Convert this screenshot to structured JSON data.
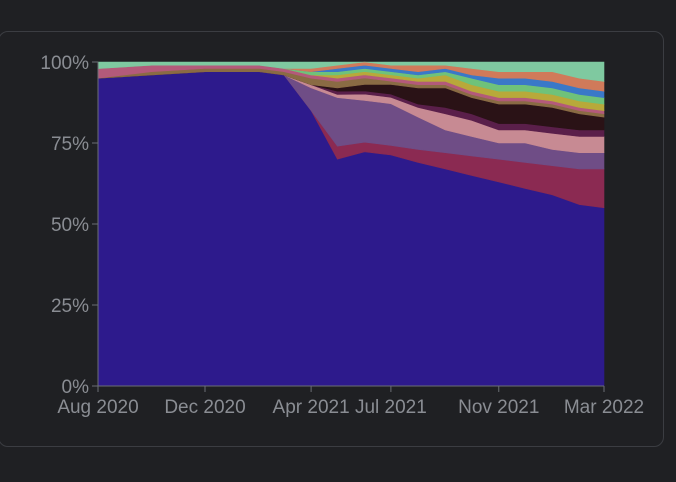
{
  "chart_data": {
    "type": "area",
    "stacked": true,
    "normalized": true,
    "title": "",
    "xlabel": "",
    "ylabel": "",
    "ylim": [
      0,
      100
    ],
    "yticks": [
      "0%",
      "25%",
      "50%",
      "75%",
      "100%"
    ],
    "x_dates": [
      "2020-08-01",
      "2020-10-01",
      "2020-12-01",
      "2021-02-01",
      "2021-03-01",
      "2021-04-01",
      "2021-05-01",
      "2021-06-01",
      "2021-07-01",
      "2021-08-01",
      "2021-09-01",
      "2021-10-01",
      "2021-11-01",
      "2021-12-01",
      "2022-01-01",
      "2022-02-01",
      "2022-03-01"
    ],
    "xticks": [
      {
        "date": "2020-08-01",
        "label": "Aug 2020"
      },
      {
        "date": "2020-12-01",
        "label": "Dec 2020"
      },
      {
        "date": "2021-04-01",
        "label": "Apr 2021"
      },
      {
        "date": "2021-07-01",
        "label": "Jul 2021"
      },
      {
        "date": "2021-11-01",
        "label": "Nov 2021"
      },
      {
        "date": "2022-03-01",
        "label": "Mar 2022"
      }
    ],
    "x_range": [
      "2020-08-01",
      "2022-03-01"
    ],
    "grid": false,
    "series": [
      {
        "color": "#2d1a8c",
        "values": [
          95,
          96,
          97,
          97,
          96,
          85,
          70,
          73,
          72,
          69,
          67,
          65,
          63,
          61,
          59,
          56,
          55
        ]
      },
      {
        "color": "#8b2a52",
        "values": [
          0,
          0,
          0,
          0,
          0,
          0,
          4,
          3,
          3,
          4,
          5,
          6,
          7,
          8,
          9,
          11,
          12
        ]
      },
      {
        "color": "#6f4d86",
        "values": [
          0,
          0,
          0,
          0,
          0,
          7,
          15,
          13,
          13,
          10,
          7,
          6,
          5,
          6,
          5,
          5,
          5
        ]
      },
      {
        "color": "#c78a93",
        "values": [
          0,
          0,
          0,
          0,
          0,
          1,
          1,
          2,
          2,
          3,
          5,
          5,
          4,
          4,
          5,
          5,
          5
        ]
      },
      {
        "color": "#5a1f4a",
        "values": [
          0,
          0,
          0,
          0,
          0,
          0,
          1,
          1,
          1,
          1,
          2,
          2,
          2,
          2,
          2,
          2,
          2
        ]
      },
      {
        "color": "#2a1216",
        "values": [
          0,
          0,
          0,
          0,
          0,
          0,
          1,
          2,
          3,
          5,
          6,
          5,
          6,
          6,
          6,
          5,
          4
        ]
      },
      {
        "color": "#8a6b44",
        "values": [
          0,
          1,
          1,
          1,
          1,
          2,
          2,
          2,
          1,
          1,
          1,
          1,
          1,
          1,
          1,
          1,
          1
        ]
      },
      {
        "color": "#b35a7a",
        "values": [
          3,
          2,
          1,
          1,
          1,
          1,
          1,
          1,
          1,
          1,
          1,
          1,
          1,
          1,
          1,
          1,
          1
        ]
      },
      {
        "color": "#b8a93a",
        "values": [
          0,
          0,
          0,
          0,
          0,
          0,
          1,
          1,
          1,
          1,
          2,
          2,
          2,
          2,
          2,
          2,
          2
        ]
      },
      {
        "color": "#6fc27a",
        "values": [
          0,
          0,
          0,
          0,
          0,
          1,
          1,
          1,
          1,
          1,
          1,
          2,
          2,
          2,
          2,
          2,
          2
        ]
      },
      {
        "color": "#3a78c8",
        "values": [
          0,
          0,
          0,
          0,
          0,
          0,
          1,
          1,
          1,
          1,
          1,
          1,
          2,
          2,
          2,
          2,
          2
        ]
      },
      {
        "color": "#d07a5a",
        "values": [
          0,
          0,
          0,
          0,
          0,
          1,
          1,
          1,
          1,
          2,
          1,
          2,
          2,
          2,
          3,
          3,
          3
        ]
      },
      {
        "color": "#7fc9a0",
        "values": [
          2,
          1,
          1,
          1,
          2,
          2,
          1,
          0,
          1,
          1,
          1,
          2,
          3,
          3,
          3,
          5,
          6
        ]
      }
    ]
  }
}
